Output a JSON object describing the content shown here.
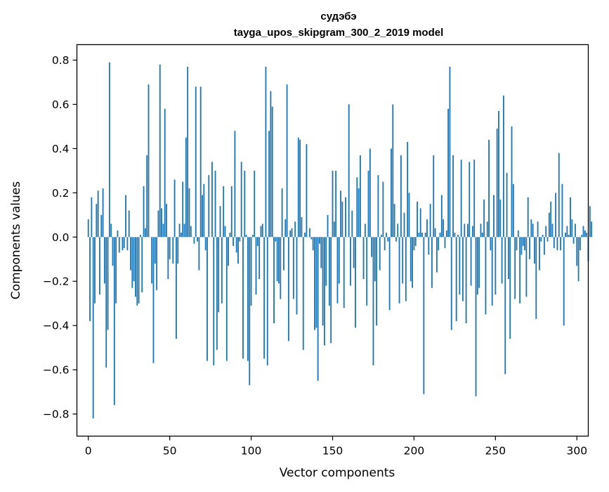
{
  "chart_data": {
    "type": "bar",
    "title": "судэбэ",
    "subtitle": "tayga_upos_skipgram_300_2_2019 model",
    "xlabel": "Vector components",
    "ylabel": "Components values",
    "xlim": [
      -7,
      307
    ],
    "ylim": [
      -0.9,
      0.87
    ],
    "x_ticks": [
      0,
      50,
      100,
      150,
      200,
      250,
      300
    ],
    "x_tick_labels": [
      "0",
      "50",
      "100",
      "150",
      "200",
      "250",
      "300"
    ],
    "y_ticks": [
      0.8,
      0.6,
      0.4,
      0.2,
      0.0,
      -0.2,
      -0.4,
      -0.6,
      -0.8
    ],
    "y_tick_labels": [
      "0.8",
      "0.6",
      "0.4",
      "0.2",
      "0.0",
      "−0.2",
      "−0.4",
      "−0.6",
      "−0.8"
    ],
    "grid": false,
    "legend": "none",
    "bar_color": "#1f77b4",
    "values": [
      0.08,
      -0.38,
      0.18,
      -0.82,
      -0.3,
      0.15,
      0.21,
      -0.26,
      0.1,
      0.22,
      -0.21,
      -0.59,
      -0.42,
      0.79,
      0.06,
      -0.13,
      -0.76,
      -0.3,
      0.03,
      -0.07,
      0.0,
      -0.06,
      -0.05,
      0.19,
      -0.06,
      0.12,
      -0.15,
      -0.23,
      -0.2,
      -0.27,
      -0.31,
      -0.3,
      0.01,
      -0.25,
      0.23,
      0.04,
      0.37,
      0.69,
      0.0,
      -0.21,
      -0.57,
      -0.12,
      -0.24,
      0.12,
      0.78,
      0.13,
      0.06,
      0.58,
      0.15,
      -0.19,
      -0.1,
      0.0,
      -0.12,
      0.26,
      -0.46,
      -0.12,
      0.06,
      0.02,
      0.25,
      0.06,
      0.45,
      0.77,
      0.22,
      0.05,
      0.0,
      -0.03,
      0.68,
      -0.02,
      -0.15,
      0.68,
      0.19,
      0.24,
      -0.06,
      -0.56,
      0.28,
      0.0,
      0.34,
      -0.58,
      0.3,
      -0.51,
      -0.34,
      0.14,
      -0.3,
      0.23,
      0.05,
      -0.56,
      -0.13,
      0.02,
      0.23,
      -0.04,
      0.48,
      -0.07,
      -0.12,
      -0.02,
      0.34,
      -0.55,
      0.3,
      0.01,
      -0.56,
      -0.67,
      -0.31,
      0.01,
      0.3,
      -0.26,
      -0.04,
      -0.19,
      0.05,
      0.06,
      -0.55,
      0.77,
      -0.58,
      0.48,
      0.66,
      0.59,
      -0.39,
      -0.02,
      -0.2,
      -0.21,
      -0.28,
      0.22,
      -0.15,
      0.08,
      0.69,
      -0.47,
      0.03,
      0.04,
      -0.28,
      0.07,
      -0.35,
      0.45,
      0.44,
      0.09,
      -0.51,
      0.02,
      0.42,
      0.0,
      0.04,
      -0.01,
      -0.06,
      -0.42,
      -0.41,
      -0.65,
      -0.03,
      -0.14,
      -0.4,
      -0.49,
      -0.22,
      0.1,
      -0.31,
      -0.48,
      0.3,
      0.07,
      0.3,
      -0.3,
      -0.21,
      0.21,
      0.16,
      -0.32,
      0.18,
      0.0,
      0.6,
      -0.22,
      0.12,
      -0.14,
      -0.41,
      0.27,
      0.22,
      0.37,
      0.0,
      -0.19,
      0.06,
      -0.31,
      0.3,
      0.4,
      -0.09,
      -0.58,
      -0.2,
      -0.4,
      0.28,
      -0.15,
      0.01,
      0.25,
      -0.06,
      0.02,
      -0.02,
      -0.33,
      0.4,
      0.6,
      0.15,
      -0.02,
      0.06,
      -0.3,
      0.37,
      -0.21,
      0.11,
      -0.29,
      0.43,
      0.2,
      -0.2,
      -0.23,
      -0.06,
      -0.04,
      0.16,
      0.02,
      0.13,
      0.02,
      -0.71,
      0.02,
      0.08,
      -0.08,
      0.15,
      -0.23,
      0.37,
      0.04,
      -0.16,
      -0.06,
      0.02,
      0.19,
      0.08,
      -0.05,
      0.03,
      0.58,
      0.77,
      -0.42,
      0.37,
      0.02,
      -0.38,
      0.01,
      -0.26,
      0.35,
      -0.29,
      0.06,
      -0.39,
      0.06,
      0.34,
      -0.22,
      0.05,
      0.35,
      -0.72,
      -0.26,
      -0.23,
      0.06,
      0.02,
      0.17,
      -0.35,
      0.07,
      0.44,
      -0.06,
      -0.31,
      0.19,
      -0.26,
      0.49,
      0.57,
      0.17,
      -0.21,
      0.64,
      -0.62,
      0.29,
      -0.19,
      -0.46,
      0.5,
      0.24,
      -0.28,
      -0.06,
      0.03,
      -0.3,
      -0.08,
      -0.04,
      -0.06,
      -0.27,
      0.18,
      -0.1,
      0.08,
      0.06,
      -0.12,
      -0.37,
      0.07,
      -0.15,
      -0.02,
      0.01,
      -0.08,
      0.05,
      -0.02,
      0.11,
      0.16,
      0.06,
      -0.05,
      0.2,
      -0.06,
      0.38,
      -0.06,
      0.24,
      -0.4,
      0.02,
      0.05,
      0.01,
      0.18,
      0.08,
      -0.03,
      0.06,
      -0.13,
      -0.2,
      -0.06,
      0.01,
      0.05,
      0.03,
      0.02,
      -0.11,
      0.14,
      0.07
    ]
  }
}
